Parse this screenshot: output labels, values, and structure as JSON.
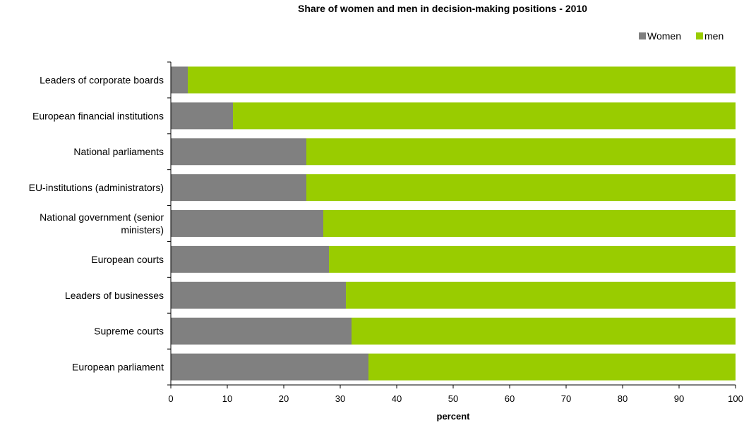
{
  "chart_data": {
    "type": "bar",
    "orientation": "horizontal",
    "stacked": true,
    "title": "Share of women and men in decision-making positions - 2010",
    "xlabel": "percent",
    "ylabel": "",
    "xlim": [
      0,
      100
    ],
    "xticks": [
      "0",
      "10",
      "20",
      "30",
      "40",
      "50",
      "60",
      "70",
      "80",
      "90",
      "100"
    ],
    "grid": false,
    "legend_position": "top-right",
    "categories": [
      [
        "Leaders of corporate boards"
      ],
      [
        "European financial institutions"
      ],
      [
        "National parliaments"
      ],
      [
        "EU-institutions (administrators)"
      ],
      [
        "National government (senior",
        "ministers)"
      ],
      [
        "European courts"
      ],
      [
        "Leaders of businesses"
      ],
      [
        "Supreme courts"
      ],
      [
        "European parliament"
      ]
    ],
    "series": [
      {
        "name": "Women",
        "color": "#808080",
        "values": [
          3,
          11,
          24,
          24,
          27,
          28,
          31,
          32,
          35
        ]
      },
      {
        "name": "men",
        "color": "#99cc00",
        "values": [
          97,
          89,
          76,
          76,
          73,
          72,
          69,
          68,
          65
        ]
      }
    ]
  }
}
